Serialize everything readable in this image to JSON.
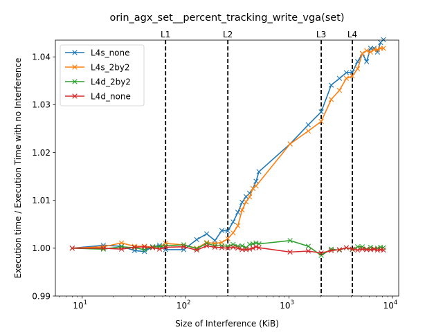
{
  "chart_data": {
    "type": "line",
    "title": "orin_agx_set__percent_tracking_write_vga(set)",
    "xlabel": "Size of Interference (KiB)",
    "ylabel": "Execution time / Execution Time with no Interference",
    "xscale": "log",
    "xlim": [
      5.5,
      11500
    ],
    "ylim": [
      0.99,
      1.0435
    ],
    "x_ticks": [
      {
        "value": 10,
        "label": "10",
        "sup": "1"
      },
      {
        "value": 100,
        "label": "10",
        "sup": "2"
      },
      {
        "value": 1000,
        "label": "10",
        "sup": "3"
      },
      {
        "value": 10000,
        "label": "10",
        "sup": "4"
      }
    ],
    "y_ticks": [
      {
        "value": 0.99,
        "label": "0.99"
      },
      {
        "value": 1.0,
        "label": "1.00"
      },
      {
        "value": 1.01,
        "label": "1.01"
      },
      {
        "value": 1.02,
        "label": "1.02"
      },
      {
        "value": 1.03,
        "label": "1.03"
      },
      {
        "value": 1.04,
        "label": "1.04"
      }
    ],
    "vlines": [
      {
        "x": 64,
        "label": "L1"
      },
      {
        "x": 256,
        "label": "L2"
      },
      {
        "x": 2048,
        "label": "L3"
      },
      {
        "x": 4096,
        "label": "L4"
      }
    ],
    "legend_position": "top-left",
    "series": [
      {
        "name": "L4s_none",
        "color": "#1f77b4",
        "points": [
          [
            8,
            1.0
          ],
          [
            16,
            1.0006
          ],
          [
            24,
            1.0004
          ],
          [
            32,
            0.9995
          ],
          [
            40,
            0.9993
          ],
          [
            48,
            1.0003
          ],
          [
            56,
            1.0006
          ],
          [
            64,
            0.9997
          ],
          [
            96,
            0.9997
          ],
          [
            128,
            1.0018
          ],
          [
            160,
            1.003
          ],
          [
            192,
            1.0016
          ],
          [
            224,
            1.0037
          ],
          [
            256,
            1.0036
          ],
          [
            288,
            1.0055
          ],
          [
            320,
            1.0075
          ],
          [
            352,
            1.0096
          ],
          [
            384,
            1.0108
          ],
          [
            416,
            1.0115
          ],
          [
            448,
            1.0125
          ],
          [
            480,
            1.014
          ],
          [
            512,
            1.016
          ],
          [
            1024,
            1.0218
          ],
          [
            1536,
            1.0258
          ],
          [
            2048,
            1.0285
          ],
          [
            2560,
            1.0341
          ],
          [
            3072,
            1.0355
          ],
          [
            3584,
            1.0367
          ],
          [
            4096,
            1.0368
          ],
          [
            4608,
            1.039
          ],
          [
            5120,
            1.0407
          ],
          [
            5632,
            1.039
          ],
          [
            6144,
            1.0418
          ],
          [
            6656,
            1.0418
          ],
          [
            7168,
            1.041
          ],
          [
            7680,
            1.043
          ],
          [
            8192,
            1.0436
          ]
        ]
      },
      {
        "name": "L4s_2by2",
        "color": "#ff7f0e",
        "points": [
          [
            8,
            1.0
          ],
          [
            16,
            1.0003
          ],
          [
            24,
            1.0011
          ],
          [
            32,
            1.0004
          ],
          [
            40,
            1.0004
          ],
          [
            48,
            1.0002
          ],
          [
            56,
            1.0003
          ],
          [
            64,
            1.001
          ],
          [
            96,
            1.0007
          ],
          [
            128,
            1.0
          ],
          [
            160,
            1.0012
          ],
          [
            192,
            1.001
          ],
          [
            224,
            1.0012
          ],
          [
            256,
            1.002
          ],
          [
            288,
            1.0032
          ],
          [
            320,
            1.0047
          ],
          [
            352,
            1.008
          ],
          [
            384,
            1.0097
          ],
          [
            416,
            1.0107
          ],
          [
            448,
            1.0125
          ],
          [
            480,
            1.013
          ],
          [
            1024,
            1.0218
          ],
          [
            1536,
            1.0245
          ],
          [
            2048,
            1.0265
          ],
          [
            2560,
            1.0311
          ],
          [
            3072,
            1.033
          ],
          [
            3584,
            1.0355
          ],
          [
            4096,
            1.036
          ],
          [
            4608,
            1.0375
          ],
          [
            5120,
            1.0407
          ],
          [
            5632,
            1.0413
          ],
          [
            6144,
            1.041
          ],
          [
            6656,
            1.0415
          ],
          [
            7168,
            1.0415
          ],
          [
            7680,
            1.0418
          ],
          [
            8192,
            1.0418
          ]
        ]
      },
      {
        "name": "L4d_2by2",
        "color": "#2ca02c",
        "points": [
          [
            8,
            1.0
          ],
          [
            16,
            0.9998
          ],
          [
            24,
            1.0003
          ],
          [
            32,
            1.0001
          ],
          [
            40,
            0.9997
          ],
          [
            48,
            1.0003
          ],
          [
            56,
            1.0003
          ],
          [
            64,
            1.0005
          ],
          [
            96,
            1.0007
          ],
          [
            128,
            0.9999
          ],
          [
            160,
            1.001
          ],
          [
            192,
            1.0005
          ],
          [
            224,
            1.0005
          ],
          [
            256,
            1.0004
          ],
          [
            288,
            1.0008
          ],
          [
            320,
            1.0004
          ],
          [
            352,
            1.0005
          ],
          [
            384,
            1.0001
          ],
          [
            416,
            1.0008
          ],
          [
            448,
            1.0009
          ],
          [
            480,
            1.0011
          ],
          [
            512,
            1.0009
          ],
          [
            1024,
            1.0016
          ],
          [
            1536,
            1.0004
          ],
          [
            2048,
            0.9985
          ],
          [
            2560,
            0.9998
          ],
          [
            3072,
            0.9996
          ],
          [
            3584,
            1.0001
          ],
          [
            4096,
            0.9997
          ],
          [
            4608,
            1.0003
          ],
          [
            5120,
            1.0003
          ],
          [
            5632,
            0.9998
          ],
          [
            6144,
            1.0002
          ],
          [
            6656,
            0.9999
          ],
          [
            7168,
            1.0
          ],
          [
            7680,
            1.0002
          ],
          [
            8192,
            1.0001
          ]
        ]
      },
      {
        "name": "L4d_none",
        "color": "#d62728",
        "points": [
          [
            8,
            1.0
          ],
          [
            16,
            1.0
          ],
          [
            24,
            0.9998
          ],
          [
            32,
            1.0002
          ],
          [
            40,
            1.0003
          ],
          [
            48,
            1.0001
          ],
          [
            56,
            0.9998
          ],
          [
            64,
            1.0002
          ],
          [
            96,
            1.0003
          ],
          [
            128,
            0.9996
          ],
          [
            160,
            1.0005
          ],
          [
            192,
            1.0002
          ],
          [
            224,
            1.0001
          ],
          [
            256,
            1.0
          ],
          [
            288,
            1.0002
          ],
          [
            320,
            1.0
          ],
          [
            352,
            0.9997
          ],
          [
            384,
            0.9997
          ],
          [
            416,
            0.9998
          ],
          [
            448,
            1.0
          ],
          [
            480,
            1.0003
          ],
          [
            512,
            1.0001
          ],
          [
            1024,
            0.9992
          ],
          [
            1536,
            0.9994
          ],
          [
            2048,
            0.999
          ],
          [
            2560,
            0.9995
          ],
          [
            3072,
            0.9997
          ],
          [
            3584,
            1.0001
          ],
          [
            4096,
            0.9998
          ],
          [
            4608,
            0.9996
          ],
          [
            5120,
            0.9998
          ],
          [
            5632,
            0.9997
          ],
          [
            6144,
            0.9997
          ],
          [
            6656,
            0.9998
          ],
          [
            7168,
            0.9996
          ],
          [
            7680,
            0.9997
          ],
          [
            8192,
            0.9996
          ]
        ]
      }
    ]
  }
}
